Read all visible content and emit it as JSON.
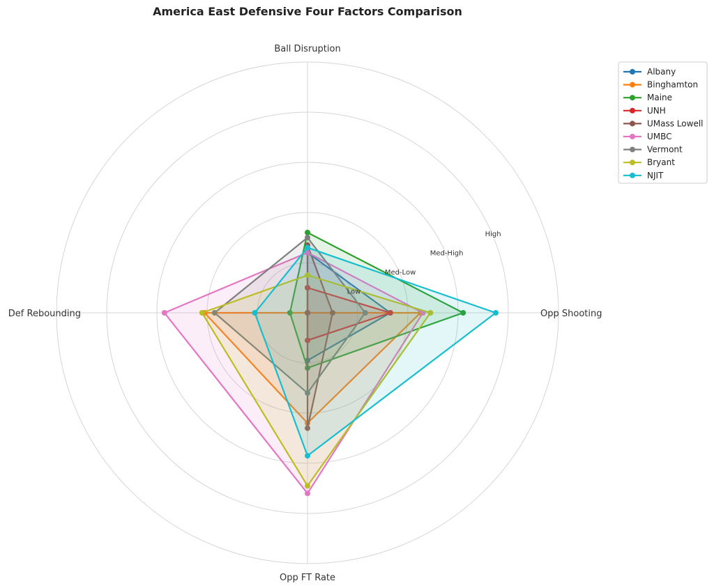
{
  "chart_data": {
    "type": "radar",
    "title": "America East Defensive Four Factors Comparison",
    "axes": [
      "Ball Disruption",
      "Opp Shooting",
      "Opp FT Rate",
      "Def Rebounding"
    ],
    "scale_labels": [
      "Low",
      "Med-Low",
      "Med-High",
      "High"
    ],
    "rlim": [
      0,
      1
    ],
    "grid": true,
    "legend_position": "top-right",
    "series": [
      {
        "name": "Albany",
        "color": "#1f77b4",
        "values": [
          0.24,
          0.33,
          0.19,
          0.0
        ]
      },
      {
        "name": "Binghamton",
        "color": "#ff7f0e",
        "values": [
          0.0,
          0.45,
          0.44,
          0.41
        ]
      },
      {
        "name": "Maine",
        "color": "#2ca02c",
        "values": [
          0.32,
          0.62,
          0.22,
          0.07
        ]
      },
      {
        "name": "UNH",
        "color": "#d62728",
        "values": [
          0.1,
          0.33,
          0.11,
          0.0
        ]
      },
      {
        "name": "UMass Lowell",
        "color": "#8c564b",
        "values": [
          0.27,
          0.1,
          0.46,
          0.0
        ]
      },
      {
        "name": "UMBC",
        "color": "#e377c2",
        "values": [
          0.24,
          0.46,
          0.72,
          0.57
        ]
      },
      {
        "name": "Vermont",
        "color": "#7f7f7f",
        "values": [
          0.3,
          0.23,
          0.32,
          0.37
        ]
      },
      {
        "name": "Bryant",
        "color": "#bcbd22",
        "values": [
          0.15,
          0.49,
          0.69,
          0.42
        ]
      },
      {
        "name": "NJIT",
        "color": "#17becf",
        "values": [
          0.26,
          0.75,
          0.57,
          0.21
        ]
      }
    ]
  }
}
